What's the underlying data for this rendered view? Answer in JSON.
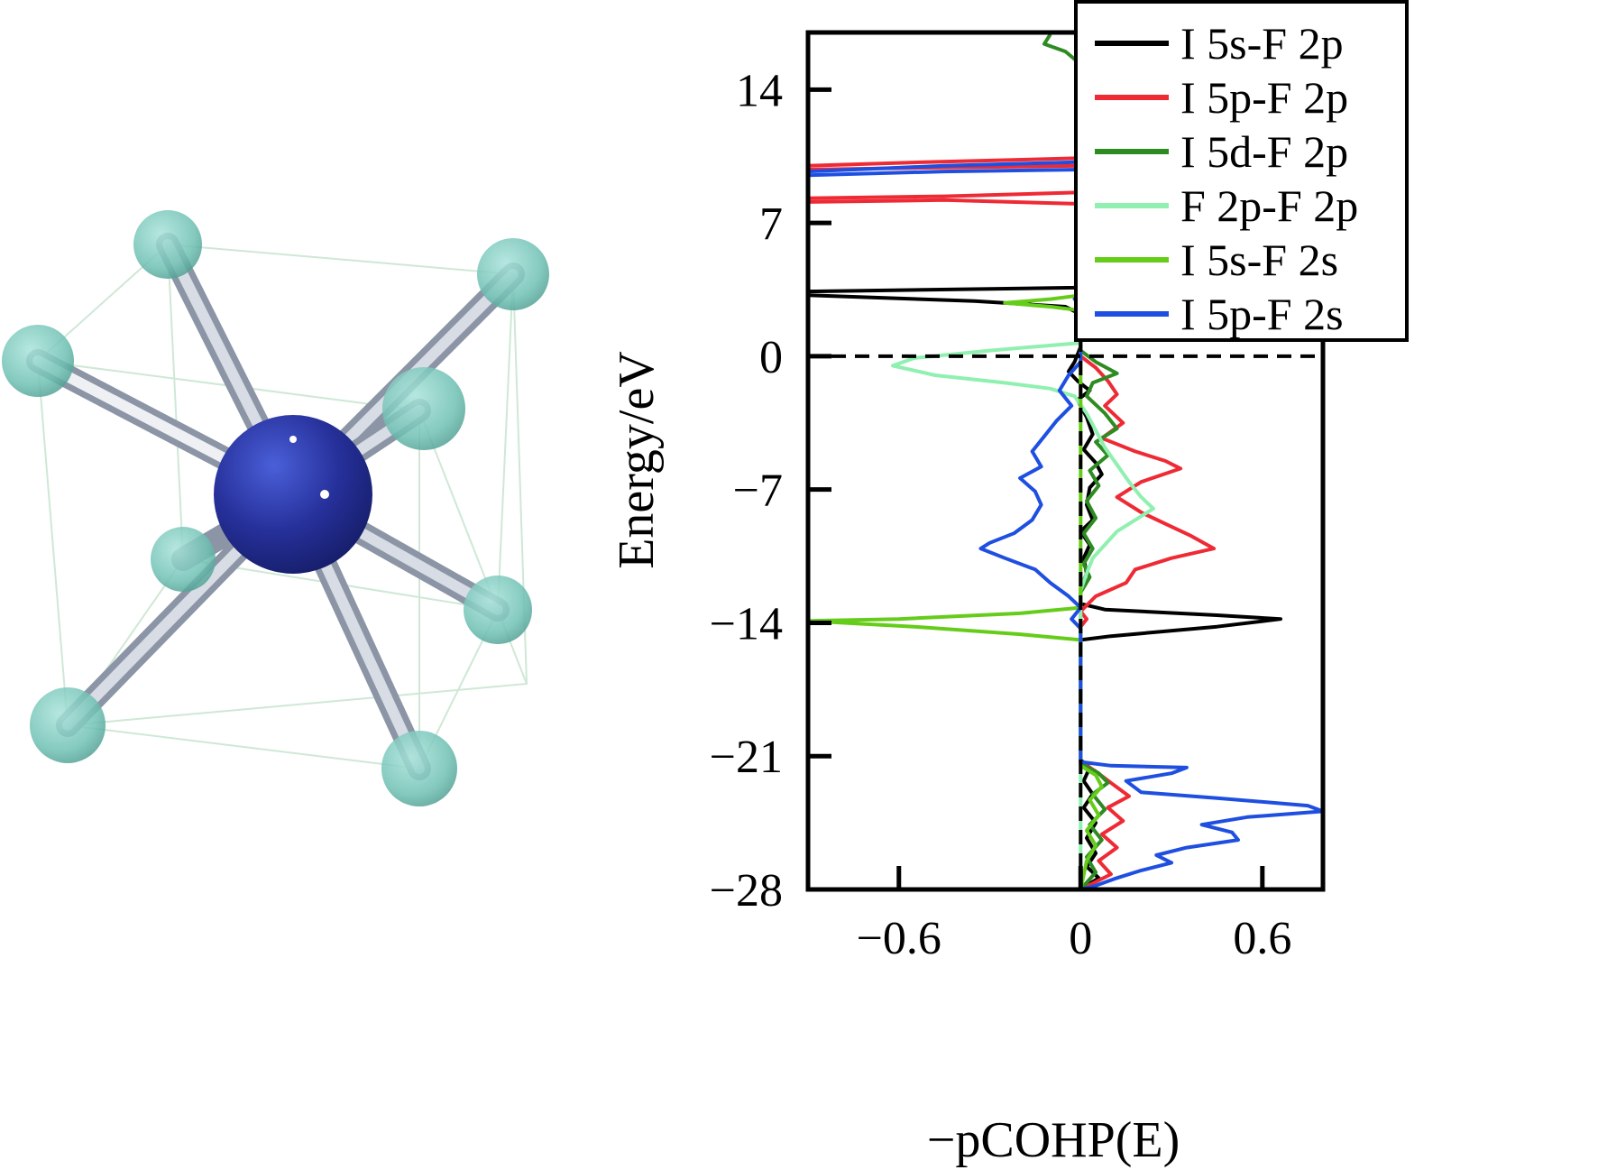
{
  "colors": {
    "iodine": "#1e2a8c",
    "fluorine": "#7fcbbf",
    "bond": "#b8bfca",
    "cell_edge": "#cfe8d6"
  },
  "chart_data": {
    "type": "line",
    "title": "",
    "xlabel": "−pCOHP(E)",
    "ylabel": "Energy/eV",
    "xlim": [
      -0.9,
      0.8
    ],
    "ylim": [
      -28,
      17
    ],
    "x_ticks": [
      {
        "value": -0.6,
        "label": "−0.6"
      },
      {
        "value": 0,
        "label": "0"
      },
      {
        "value": 0.6,
        "label": "0.6"
      }
    ],
    "y_ticks": [
      {
        "value": 14,
        "label": "14"
      },
      {
        "value": 7,
        "label": "7"
      },
      {
        "value": 0,
        "label": "0"
      },
      {
        "value": -7,
        "label": "−7"
      },
      {
        "value": -14,
        "label": "−14"
      },
      {
        "value": -21,
        "label": "−21"
      },
      {
        "value": -28,
        "label": "−28"
      }
    ],
    "fermi_level": 0,
    "legend_position": "top-right",
    "series": [
      {
        "name": "I 5s-F 2p",
        "color": "#000000",
        "points": [
          [
            0,
            16.5
          ],
          [
            0,
            4
          ],
          [
            -0.02,
            3.6
          ],
          [
            -0.9,
            3.4
          ],
          [
            -0.9,
            3.2
          ],
          [
            -0.35,
            2.9
          ],
          [
            -0.05,
            2.6
          ],
          [
            0,
            2.2
          ],
          [
            0,
            0.5
          ],
          [
            -0.02,
            -0.3
          ],
          [
            -0.04,
            -0.8
          ],
          [
            -0.01,
            -1.3
          ],
          [
            0.03,
            -1.8
          ],
          [
            -0.01,
            -2.3
          ],
          [
            0.02,
            -3.2
          ],
          [
            0.04,
            -4.1
          ],
          [
            0.01,
            -4.9
          ],
          [
            0.05,
            -5.6
          ],
          [
            0.07,
            -6.2
          ],
          [
            0.03,
            -6.9
          ],
          [
            0.02,
            -7.8
          ],
          [
            0.04,
            -8.6
          ],
          [
            0.0,
            -9.2
          ],
          [
            0.03,
            -9.9
          ],
          [
            0.01,
            -10.6
          ],
          [
            0.02,
            -11.4
          ],
          [
            0,
            -12.2
          ],
          [
            0,
            -13.0
          ],
          [
            0.08,
            -13.3
          ],
          [
            0.45,
            -13.6
          ],
          [
            0.66,
            -13.8
          ],
          [
            0.45,
            -14.2
          ],
          [
            0.1,
            -14.7
          ],
          [
            0,
            -14.9
          ],
          [
            0,
            -21.2
          ],
          [
            0.03,
            -21.6
          ],
          [
            0.01,
            -22.3
          ],
          [
            0.04,
            -23.0
          ],
          [
            0.01,
            -23.7
          ],
          [
            0.05,
            -24.5
          ],
          [
            0.02,
            -25.3
          ],
          [
            0.05,
            -26.1
          ],
          [
            0.02,
            -26.8
          ],
          [
            0.06,
            -27.4
          ],
          [
            0,
            -28
          ]
        ]
      },
      {
        "name": "I 5p-F 2p",
        "color": "#ee2a35",
        "points": [
          [
            0,
            16.5
          ],
          [
            0,
            10.4
          ],
          [
            -0.5,
            10.2
          ],
          [
            -0.9,
            10.0
          ],
          [
            -0.9,
            9.8
          ],
          [
            -0.5,
            9.9
          ],
          [
            0,
            10.0
          ],
          [
            0,
            8.6
          ],
          [
            -0.45,
            8.4
          ],
          [
            -0.9,
            8.3
          ],
          [
            -0.9,
            8.1
          ],
          [
            -0.45,
            8.2
          ],
          [
            0,
            8.0
          ],
          [
            0,
            3.2
          ],
          [
            0.03,
            3.0
          ],
          [
            0,
            2.7
          ],
          [
            0,
            0
          ],
          [
            0.05,
            -0.6
          ],
          [
            0.09,
            -1.3
          ],
          [
            0.12,
            -2.0
          ],
          [
            0.08,
            -2.6
          ],
          [
            0.14,
            -3.5
          ],
          [
            0.07,
            -4.3
          ],
          [
            0.18,
            -5.0
          ],
          [
            0.28,
            -5.5
          ],
          [
            0.33,
            -5.9
          ],
          [
            0.2,
            -6.6
          ],
          [
            0.12,
            -7.4
          ],
          [
            0.2,
            -8.2
          ],
          [
            0.28,
            -8.8
          ],
          [
            0.36,
            -9.4
          ],
          [
            0.44,
            -10.1
          ],
          [
            0.3,
            -10.6
          ],
          [
            0.18,
            -11.2
          ],
          [
            0.15,
            -11.9
          ],
          [
            0.05,
            -12.6
          ],
          [
            0,
            -13.4
          ],
          [
            0.02,
            -13.8
          ],
          [
            0,
            -14.2
          ],
          [
            0,
            -21.3
          ],
          [
            0.05,
            -21.8
          ],
          [
            0.1,
            -22.4
          ],
          [
            0.16,
            -23.1
          ],
          [
            0.09,
            -23.7
          ],
          [
            0.14,
            -24.4
          ],
          [
            0.07,
            -25.1
          ],
          [
            0.12,
            -25.8
          ],
          [
            0.06,
            -26.5
          ],
          [
            0.1,
            -27.2
          ],
          [
            0,
            -28
          ]
        ]
      },
      {
        "name": "I 5d-F 2p",
        "color": "#2e8b22",
        "points": [
          [
            -0.1,
            16.9
          ],
          [
            -0.12,
            16.4
          ],
          [
            -0.05,
            16.0
          ],
          [
            -0.02,
            15.6
          ],
          [
            0,
            15.3
          ],
          [
            0,
            0.3
          ],
          [
            0.05,
            -0.3
          ],
          [
            0.12,
            -0.9
          ],
          [
            0.04,
            -1.4
          ],
          [
            0.02,
            -2.1
          ],
          [
            0.08,
            -3.0
          ],
          [
            0.12,
            -3.8
          ],
          [
            0.05,
            -4.5
          ],
          [
            0.09,
            -5.2
          ],
          [
            0.03,
            -6.0
          ],
          [
            0.06,
            -6.8
          ],
          [
            0.02,
            -7.6
          ],
          [
            0.05,
            -8.5
          ],
          [
            0.01,
            -9.3
          ],
          [
            0.04,
            -10.1
          ],
          [
            0.01,
            -10.9
          ],
          [
            0.03,
            -11.6
          ],
          [
            0,
            -12.4
          ],
          [
            0,
            -21.4
          ],
          [
            0.06,
            -21.9
          ],
          [
            0.09,
            -22.4
          ],
          [
            0.04,
            -23.0
          ],
          [
            0.08,
            -23.8
          ],
          [
            0.03,
            -24.6
          ],
          [
            0.07,
            -25.4
          ],
          [
            0.02,
            -26.3
          ],
          [
            0.05,
            -27.1
          ],
          [
            0,
            -28
          ]
        ]
      },
      {
        "name": "F 2p-F 2p",
        "color": "#8ff0b0",
        "points": [
          [
            0,
            16.5
          ],
          [
            0,
            0.7
          ],
          [
            -0.3,
            0.3
          ],
          [
            -0.55,
            -0.1
          ],
          [
            -0.62,
            -0.5
          ],
          [
            -0.48,
            -1.0
          ],
          [
            -0.25,
            -1.4
          ],
          [
            -0.1,
            -1.7
          ],
          [
            -0.02,
            -2.1
          ],
          [
            0.02,
            -3.0
          ],
          [
            0.05,
            -3.9
          ],
          [
            0.08,
            -4.8
          ],
          [
            0.12,
            -5.7
          ],
          [
            0.16,
            -6.6
          ],
          [
            0.2,
            -7.4
          ],
          [
            0.24,
            -8.0
          ],
          [
            0.18,
            -8.6
          ],
          [
            0.12,
            -9.2
          ],
          [
            0.08,
            -9.9
          ],
          [
            0.04,
            -10.6
          ],
          [
            0.02,
            -11.4
          ],
          [
            0,
            -12.3
          ],
          [
            0,
            -28
          ]
        ]
      },
      {
        "name": "I 5s-F 2s",
        "color": "#66cc1a",
        "points": [
          [
            0,
            16.5
          ],
          [
            0,
            3.2
          ],
          [
            -0.1,
            3.0
          ],
          [
            -0.25,
            2.8
          ],
          [
            -0.1,
            2.6
          ],
          [
            0,
            2.4
          ],
          [
            0,
            -13.2
          ],
          [
            -0.2,
            -13.5
          ],
          [
            -0.6,
            -13.8
          ],
          [
            -0.9,
            -13.9
          ],
          [
            -0.55,
            -14.2
          ],
          [
            -0.2,
            -14.6
          ],
          [
            0,
            -14.9
          ],
          [
            0,
            -21.5
          ],
          [
            0.05,
            -22.0
          ],
          [
            0.07,
            -22.6
          ],
          [
            0.03,
            -23.3
          ],
          [
            0.06,
            -24.1
          ],
          [
            0.02,
            -24.9
          ],
          [
            0.05,
            -25.7
          ],
          [
            0.02,
            -26.5
          ],
          [
            0,
            -28
          ]
        ]
      },
      {
        "name": "I 5p-F 2s",
        "color": "#1f4fe0",
        "points": [
          [
            0,
            16.5
          ],
          [
            0,
            10.2
          ],
          [
            -0.45,
            10.0
          ],
          [
            -0.9,
            9.7
          ],
          [
            -0.9,
            9.5
          ],
          [
            -0.45,
            9.7
          ],
          [
            0,
            9.8
          ],
          [
            0,
            3.2
          ],
          [
            -0.02,
            3.0
          ],
          [
            0,
            2.8
          ],
          [
            0,
            -0.3
          ],
          [
            -0.04,
            -1.0
          ],
          [
            -0.07,
            -1.8
          ],
          [
            -0.03,
            -2.6
          ],
          [
            -0.08,
            -3.4
          ],
          [
            -0.12,
            -4.2
          ],
          [
            -0.16,
            -5.0
          ],
          [
            -0.13,
            -5.8
          ],
          [
            -0.2,
            -6.4
          ],
          [
            -0.15,
            -7.1
          ],
          [
            -0.13,
            -7.8
          ],
          [
            -0.16,
            -8.6
          ],
          [
            -0.22,
            -9.3
          ],
          [
            -0.3,
            -9.8
          ],
          [
            -0.33,
            -10.1
          ],
          [
            -0.25,
            -10.6
          ],
          [
            -0.15,
            -11.2
          ],
          [
            -0.1,
            -11.9
          ],
          [
            -0.04,
            -12.6
          ],
          [
            0,
            -13.2
          ],
          [
            -0.03,
            -13.8
          ],
          [
            0,
            -14.3
          ],
          [
            0,
            -21.3
          ],
          [
            0.1,
            -21.5
          ],
          [
            0.35,
            -21.6
          ],
          [
            0.3,
            -21.9
          ],
          [
            0.15,
            -22.3
          ],
          [
            0.2,
            -22.9
          ],
          [
            0.45,
            -23.2
          ],
          [
            0.75,
            -23.6
          ],
          [
            0.8,
            -23.9
          ],
          [
            0.55,
            -24.2
          ],
          [
            0.4,
            -24.6
          ],
          [
            0.5,
            -25.0
          ],
          [
            0.52,
            -25.4
          ],
          [
            0.35,
            -25.8
          ],
          [
            0.25,
            -26.2
          ],
          [
            0.3,
            -26.6
          ],
          [
            0.2,
            -27.0
          ],
          [
            0.12,
            -27.4
          ],
          [
            0.05,
            -27.8
          ],
          [
            0,
            -28
          ]
        ]
      }
    ]
  }
}
